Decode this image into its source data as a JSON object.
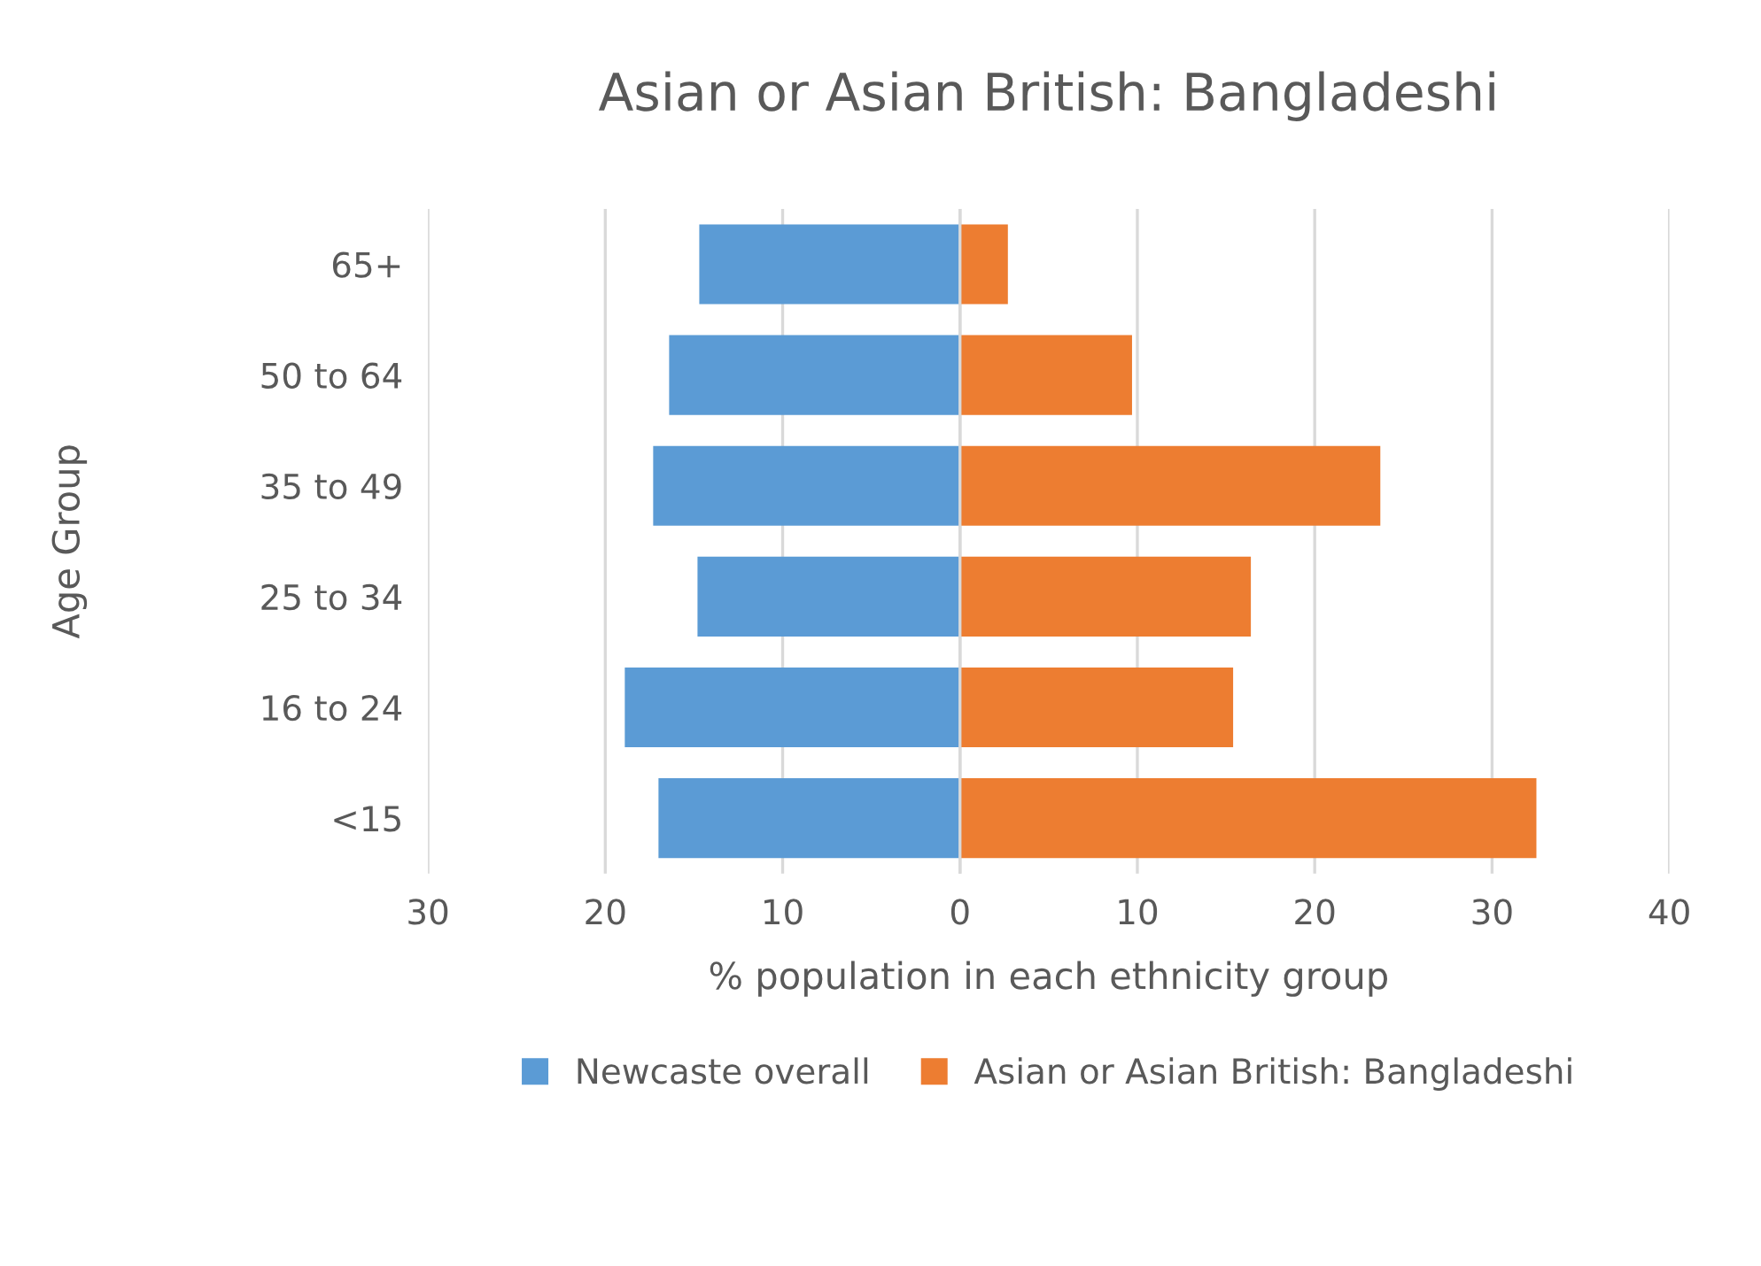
{
  "chart_data": {
    "type": "bar",
    "orientation": "horizontal",
    "title": "Asian or Asian British: Bangladeshi",
    "xlabel": "% population in each ethnicity group",
    "ylabel": "Age Group",
    "categories": [
      "65+",
      "50 to 64",
      "35 to 49",
      "25 to 34",
      "16 to 24",
      "<15"
    ],
    "series": [
      {
        "name": "Newcaste overall",
        "color": "#5b9bd5",
        "values": [
          -14.7,
          -16.4,
          -17.3,
          -14.8,
          -18.9,
          -17.0
        ]
      },
      {
        "name": "Asian or Asian British: Bangladeshi",
        "color": "#ed7d31",
        "values": [
          2.7,
          9.7,
          23.7,
          16.4,
          15.4,
          32.5
        ]
      }
    ],
    "xlim": [
      -30,
      40
    ],
    "xticks": [
      {
        "value": -30,
        "label": "30"
      },
      {
        "value": -20,
        "label": "20"
      },
      {
        "value": -10,
        "label": "10"
      },
      0,
      10,
      20,
      30,
      40
    ],
    "grid": "x",
    "legend": "bottom",
    "stacked": true
  }
}
